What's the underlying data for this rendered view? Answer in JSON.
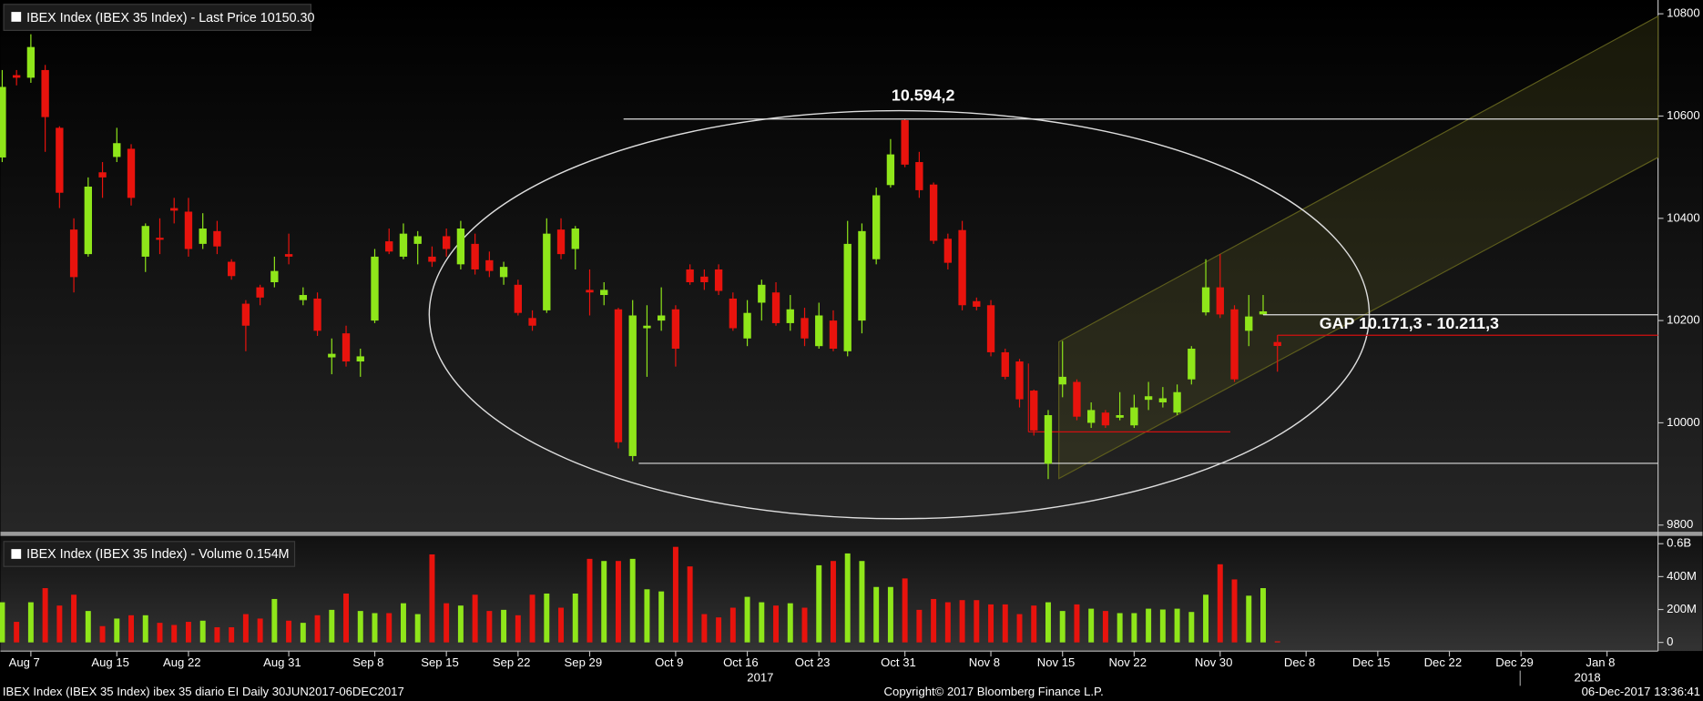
{
  "chart_data": {
    "type": "candlestick",
    "title": "IBEX Index (IBEX 35 Index) - Last Price 10150.30",
    "volume_title": "IBEX Index (IBEX 35 Index) - Volume 0.154M",
    "footer_left": "IBEX Index (IBEX 35 Index) ibex 35 diario EI  Daily 30JUN2017-06DEC2017",
    "footer_center": "Copyright© 2017 Bloomberg Finance L.P.",
    "footer_right": "06-Dec-2017 13:36:41",
    "years": [
      "2017",
      "2018"
    ],
    "up_color": "#8fe61a",
    "down_color": "#e8130d",
    "x": [
      "2017-08-03",
      "2017-08-04",
      "2017-08-07",
      "2017-08-08",
      "2017-08-09",
      "2017-08-10",
      "2017-08-11",
      "2017-08-14",
      "2017-08-15",
      "2017-08-16",
      "2017-08-17",
      "2017-08-18",
      "2017-08-21",
      "2017-08-22",
      "2017-08-23",
      "2017-08-24",
      "2017-08-25",
      "2017-08-28",
      "2017-08-29",
      "2017-08-30",
      "2017-08-31",
      "2017-09-01",
      "2017-09-04",
      "2017-09-05",
      "2017-09-06",
      "2017-09-07",
      "2017-09-08",
      "2017-09-11",
      "2017-09-12",
      "2017-09-13",
      "2017-09-14",
      "2017-09-15",
      "2017-09-18",
      "2017-09-19",
      "2017-09-20",
      "2017-09-21",
      "2017-09-22",
      "2017-09-25",
      "2017-09-26",
      "2017-09-27",
      "2017-09-28",
      "2017-09-29",
      "2017-10-02",
      "2017-10-03",
      "2017-10-04",
      "2017-10-05",
      "2017-10-06",
      "2017-10-09",
      "2017-10-10",
      "2017-10-11",
      "2017-10-12",
      "2017-10-13",
      "2017-10-16",
      "2017-10-17",
      "2017-10-18",
      "2017-10-19",
      "2017-10-20",
      "2017-10-23",
      "2017-10-24",
      "2017-10-25",
      "2017-10-26",
      "2017-10-27",
      "2017-10-30",
      "2017-10-31",
      "2017-11-01",
      "2017-11-02",
      "2017-11-03",
      "2017-11-06",
      "2017-11-07",
      "2017-11-08",
      "2017-11-09",
      "2017-11-10",
      "2017-11-13",
      "2017-11-14",
      "2017-11-15",
      "2017-11-16",
      "2017-11-17",
      "2017-11-20",
      "2017-11-21",
      "2017-11-22",
      "2017-11-23",
      "2017-11-24",
      "2017-11-27",
      "2017-11-28",
      "2017-11-29",
      "2017-11-30",
      "2017-12-01",
      "2017-12-04",
      "2017-12-05",
      "2017-12-06"
    ],
    "open": [
      10519,
      10680,
      10675,
      10690,
      10577,
      10378,
      10330,
      10490,
      10520,
      10536,
      10325,
      10362,
      10420,
      10413,
      10350,
      10375,
      10315,
      10233,
      10265,
      10275,
      10330,
      10240,
      10243,
      10128,
      10175,
      10120,
      10200,
      10355,
      10325,
      10350,
      10325,
      10365,
      10310,
      10350,
      10318,
      10285,
      10270,
      10205,
      10220,
      10378,
      10340,
      10260,
      10250,
      10222,
      9935,
      10185,
      10200,
      10222,
      10300,
      10286,
      10300,
      10243,
      10165,
      10235,
      10255,
      10195,
      10205,
      10150,
      10200,
      10140,
      10200,
      10320,
      10465,
      10592,
      10510,
      10466,
      10360,
      10377,
      10238,
      10230,
      10138,
      10120,
      10063,
      9920,
      10075,
      10080,
      10000,
      10020,
      10010,
      9995,
      10045,
      10040,
      10020,
      10085,
      10216,
      10265,
      10222,
      10180,
      10212,
      10158
    ],
    "high": [
      10690,
      10690,
      10760,
      10700,
      10580,
      10400,
      10480,
      10510,
      10577,
      10545,
      10390,
      10400,
      10440,
      10440,
      10410,
      10395,
      10320,
      10240,
      10270,
      10325,
      10370,
      10265,
      10255,
      10165,
      10190,
      10145,
      10340,
      10380,
      10390,
      10375,
      10345,
      10380,
      10395,
      10370,
      10335,
      10315,
      10280,
      10220,
      10400,
      10400,
      10385,
      10300,
      10275,
      10225,
      10240,
      10230,
      10265,
      10230,
      10310,
      10300,
      10310,
      10255,
      10240,
      10280,
      10275,
      10250,
      10225,
      10235,
      10220,
      10395,
      10390,
      10460,
      10555,
      10594.2,
      10530,
      10470,
      10370,
      10395,
      10245,
      10240,
      10145,
      10125,
      10065,
      10025,
      10160,
      10085,
      10040,
      10025,
      10060,
      10055,
      10080,
      10070,
      10075,
      10150,
      10320,
      10330,
      10230,
      10250,
      10250,
      10171.3
    ],
    "low": [
      10510,
      10660,
      10665,
      10530,
      10420,
      10255,
      10325,
      10440,
      10510,
      10425,
      10295,
      10330,
      10390,
      10325,
      10340,
      10330,
      10280,
      10140,
      10230,
      10265,
      10310,
      10230,
      10170,
      10095,
      10110,
      10090,
      10195,
      10330,
      10320,
      10310,
      10305,
      10325,
      10300,
      10290,
      10285,
      10270,
      10210,
      10180,
      10215,
      10320,
      10300,
      10210,
      10230,
      9950,
      9925,
      10090,
      10180,
      10110,
      10270,
      10260,
      10250,
      10180,
      10150,
      10200,
      10190,
      10180,
      10150,
      10145,
      10140,
      10130,
      10175,
      10310,
      10460,
      10500,
      10440,
      10350,
      10300,
      10220,
      10220,
      10130,
      10085,
      10030,
      9975,
      9890,
      10050,
      10005,
      9990,
      9990,
      10005,
      9990,
      10025,
      10030,
      10015,
      10075,
      10210,
      10205,
      10080,
      10150,
      10211.3,
      10100
    ],
    "close": [
      10657,
      10675,
      10735,
      10598,
      10450,
      10285,
      10462,
      10480,
      10547,
      10440,
      10385,
      10358,
      10415,
      10340,
      10380,
      10345,
      10287,
      10190,
      10245,
      10297,
      10325,
      10250,
      10180,
      10135,
      10120,
      10130,
      10325,
      10335,
      10370,
      10365,
      10315,
      10340,
      10380,
      10300,
      10297,
      10305,
      10215,
      10190,
      10370,
      10330,
      10380,
      10255,
      10260,
      9962,
      10210,
      10190,
      10210,
      10145,
      10275,
      10275,
      10258,
      10185,
      10215,
      10270,
      10195,
      10222,
      10165,
      10210,
      10145,
      10350,
      10375,
      10445,
      10525,
      10505,
      10455,
      10356,
      10313,
      10230,
      10227,
      10138,
      10090,
      10046,
      9985,
      10015,
      10090,
      10012,
      10025,
      9995,
      10015,
      10030,
      10052,
      10048,
      10060,
      10145,
      10265,
      10212,
      10085,
      10208,
      10218,
      10150.3
    ],
    "volume": [
      244,
      125,
      244,
      330,
      224,
      290,
      191,
      99,
      145,
      165,
      165,
      119,
      106,
      125,
      132,
      92,
      92,
      172,
      145,
      264,
      132,
      119,
      165,
      198,
      297,
      191,
      178,
      178,
      238,
      172,
      535,
      238,
      224,
      290,
      191,
      198,
      165,
      290,
      297,
      211,
      297,
      508,
      495,
      495,
      508,
      323,
      310,
      581,
      462,
      172,
      152,
      211,
      277,
      244,
      224,
      238,
      211,
      469,
      495,
      541,
      495,
      337,
      337,
      389,
      198,
      264,
      244,
      257,
      257,
      231,
      231,
      172,
      224,
      244,
      191,
      231,
      205,
      191,
      178,
      178,
      205,
      200,
      205,
      185,
      290,
      475,
      383,
      284,
      330,
      0.154
    ],
    "ylim": [
      9787,
      10827
    ],
    "yticks": [
      9800,
      10000,
      10200,
      10400,
      10600,
      10800
    ],
    "volume_ylim": [
      0,
      640
    ],
    "volume_yticks": [
      0,
      {
        "value": 200,
        "label": "200M"
      },
      {
        "value": 400,
        "label": "400M"
      },
      {
        "value": 600,
        "label": "0.6B"
      }
    ],
    "xticks": [
      {
        "value": "2017-08-07",
        "label": "Aug 7"
      },
      {
        "value": "2017-08-15",
        "label": "Aug 15"
      },
      {
        "value": "2017-08-22",
        "label": "Aug 22"
      },
      {
        "value": "2017-08-31",
        "label": "Aug 31"
      },
      {
        "value": "2017-09-08",
        "label": "Sep 8"
      },
      {
        "value": "2017-09-15",
        "label": "Sep 15"
      },
      {
        "value": "2017-09-22",
        "label": "Sep 22"
      },
      {
        "value": "2017-09-29",
        "label": "Sep 29"
      },
      {
        "value": "2017-10-09",
        "label": "Oct 9"
      },
      {
        "value": "2017-10-16",
        "label": "Oct 16"
      },
      {
        "value": "2017-10-23",
        "label": "Oct 23"
      },
      {
        "value": "2017-10-31",
        "label": "Oct 31"
      },
      {
        "value": "2017-11-08",
        "label": "Nov 8"
      },
      {
        "value": "2017-11-15",
        "label": "Nov 15"
      },
      {
        "value": "2017-11-22",
        "label": "Nov 22"
      },
      {
        "value": "2017-11-30",
        "label": "Nov 30"
      },
      {
        "value": "2017-12-08",
        "label": "Dec 8"
      },
      {
        "value": "2017-12-15",
        "label": "Dec 15"
      },
      {
        "value": "2017-12-22",
        "label": "Dec 22"
      },
      {
        "value": "2017-12-29",
        "label": "Dec 29"
      },
      {
        "value": "2018-01-08",
        "label": "Jan 8"
      }
    ],
    "high_annotation": {
      "label": "10.594,2",
      "value": 10594.2
    },
    "gap_annotation": {
      "label": "GAP 10.171,3 - 10.211,3",
      "low": 10171.3,
      "high": 10211.3
    }
  }
}
